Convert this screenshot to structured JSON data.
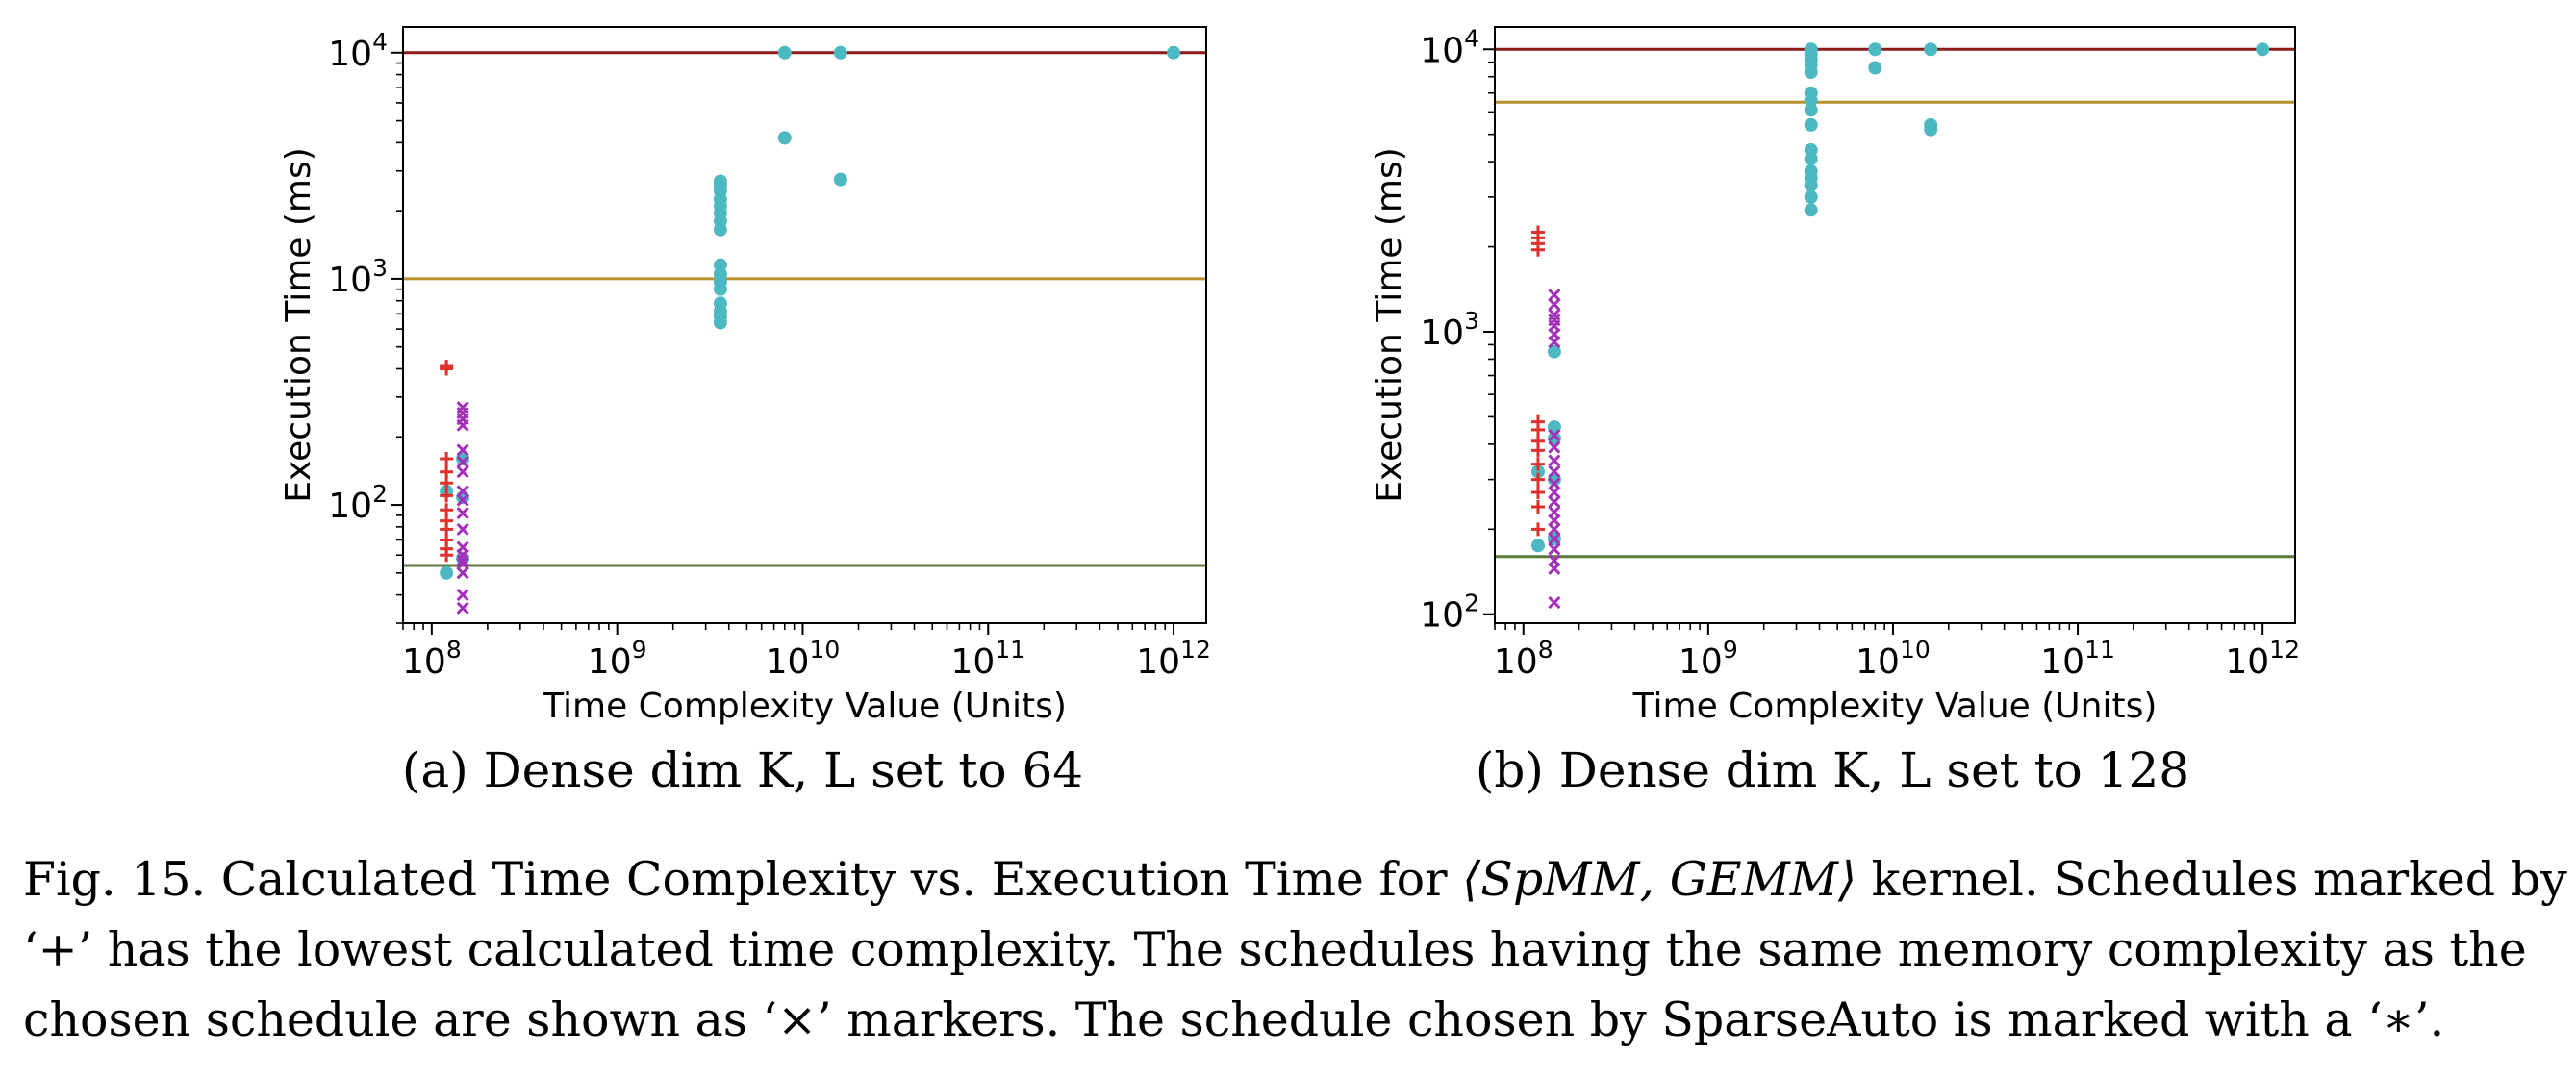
{
  "chart_data": [
    {
      "type": "scatter",
      "subcaption": "(a) Dense dim K, L set to 64",
      "xlabel": "Time Complexity Value (Units)",
      "ylabel": "Execution Time (ms)",
      "xscale": "log",
      "yscale": "log",
      "xlim": [
        70000000,
        1500000000000
      ],
      "ylim": [
        30,
        13000
      ],
      "x_ticks": [
        {
          "value": 100000000,
          "base": "10",
          "exp": "8"
        },
        {
          "value": 1000000000,
          "base": "10",
          "exp": "9"
        },
        {
          "value": 10000000000,
          "base": "10",
          "exp": "10"
        },
        {
          "value": 100000000000,
          "base": "10",
          "exp": "11"
        },
        {
          "value": 1000000000000,
          "base": "10",
          "exp": "12"
        }
      ],
      "y_ticks": [
        {
          "value": 100,
          "base": "10",
          "exp": "2"
        },
        {
          "value": 1000,
          "base": "10",
          "exp": "3"
        },
        {
          "value": 10000,
          "base": "10",
          "exp": "4"
        }
      ],
      "hlines": [
        {
          "y": 10000,
          "color": "#8b1a1a"
        },
        {
          "y": 1000,
          "color": "#b8912c"
        },
        {
          "y": 54,
          "color": "#5a7a3a"
        }
      ],
      "series": [
        {
          "marker": "+",
          "color": "#e0302a",
          "points": [
            {
              "x": 120000000,
              "y": 410
            },
            {
              "x": 120000000,
              "y": 400
            },
            {
              "x": 120000000,
              "y": 160
            },
            {
              "x": 120000000,
              "y": 140
            },
            {
              "x": 120000000,
              "y": 125
            },
            {
              "x": 120000000,
              "y": 110
            },
            {
              "x": 120000000,
              "y": 95
            },
            {
              "x": 120000000,
              "y": 85
            },
            {
              "x": 120000000,
              "y": 78
            },
            {
              "x": 120000000,
              "y": 70
            },
            {
              "x": 120000000,
              "y": 64
            },
            {
              "x": 120000000,
              "y": 60
            }
          ]
        },
        {
          "marker": "x",
          "color": "#a230b8",
          "points": [
            {
              "x": 147000000,
              "y": 270
            },
            {
              "x": 147000000,
              "y": 255
            },
            {
              "x": 147000000,
              "y": 240
            },
            {
              "x": 147000000,
              "y": 225
            },
            {
              "x": 147000000,
              "y": 175
            },
            {
              "x": 147000000,
              "y": 155
            },
            {
              "x": 147000000,
              "y": 140
            },
            {
              "x": 147000000,
              "y": 115
            },
            {
              "x": 147000000,
              "y": 105
            },
            {
              "x": 147000000,
              "y": 92
            },
            {
              "x": 147000000,
              "y": 78
            },
            {
              "x": 147000000,
              "y": 65
            },
            {
              "x": 147000000,
              "y": 60
            },
            {
              "x": 147000000,
              "y": 57
            },
            {
              "x": 147000000,
              "y": 55
            },
            {
              "x": 147000000,
              "y": 50
            },
            {
              "x": 147000000,
              "y": 40
            },
            {
              "x": 147000000,
              "y": 35
            }
          ]
        },
        {
          "marker": "o",
          "color": "#4bb8c2",
          "points": [
            {
              "x": 120000000,
              "y": 115
            },
            {
              "x": 120000000,
              "y": 50
            },
            {
              "x": 147000000,
              "y": 160
            },
            {
              "x": 147000000,
              "y": 108
            },
            {
              "x": 147000000,
              "y": 58
            },
            {
              "x": 3600000000,
              "y": 2700
            },
            {
              "x": 3600000000,
              "y": 2600
            },
            {
              "x": 3600000000,
              "y": 2450
            },
            {
              "x": 3600000000,
              "y": 2250
            },
            {
              "x": 3600000000,
              "y": 2100
            },
            {
              "x": 3600000000,
              "y": 1950
            },
            {
              "x": 3600000000,
              "y": 1800
            },
            {
              "x": 3600000000,
              "y": 1650
            },
            {
              "x": 3600000000,
              "y": 1150
            },
            {
              "x": 3600000000,
              "y": 1050
            },
            {
              "x": 3600000000,
              "y": 970
            },
            {
              "x": 3600000000,
              "y": 900
            },
            {
              "x": 3600000000,
              "y": 780
            },
            {
              "x": 3600000000,
              "y": 720
            },
            {
              "x": 3600000000,
              "y": 680
            },
            {
              "x": 3600000000,
              "y": 640
            },
            {
              "x": 8000000000,
              "y": 10000
            },
            {
              "x": 8000000000,
              "y": 4200
            },
            {
              "x": 16000000000,
              "y": 10000
            },
            {
              "x": 16000000000,
              "y": 2750
            },
            {
              "x": 1000000000000,
              "y": 10000
            }
          ]
        }
      ]
    },
    {
      "type": "scatter",
      "subcaption": "(b) Dense dim K, L set to 128",
      "xlabel": "Time Complexity Value (Units)",
      "ylabel": "Execution Time (ms)",
      "xscale": "log",
      "yscale": "log",
      "xlim": [
        70000000,
        1500000000000
      ],
      "ylim": [
        93,
        12000
      ],
      "x_ticks": [
        {
          "value": 100000000,
          "base": "10",
          "exp": "8"
        },
        {
          "value": 1000000000,
          "base": "10",
          "exp": "9"
        },
        {
          "value": 10000000000,
          "base": "10",
          "exp": "10"
        },
        {
          "value": 100000000000,
          "base": "10",
          "exp": "11"
        },
        {
          "value": 1000000000000,
          "base": "10",
          "exp": "12"
        }
      ],
      "y_ticks": [
        {
          "value": 100,
          "base": "10",
          "exp": "2"
        },
        {
          "value": 1000,
          "base": "10",
          "exp": "3"
        },
        {
          "value": 10000,
          "base": "10",
          "exp": "4"
        }
      ],
      "hlines": [
        {
          "y": 10000,
          "color": "#8b1a1a"
        },
        {
          "y": 6500,
          "color": "#b8912c"
        },
        {
          "y": 160,
          "color": "#5a7a3a"
        }
      ],
      "series": [
        {
          "marker": "+",
          "color": "#e0302a",
          "points": [
            {
              "x": 120000000,
              "y": 2250
            },
            {
              "x": 120000000,
              "y": 2150
            },
            {
              "x": 120000000,
              "y": 2050
            },
            {
              "x": 120000000,
              "y": 1950
            },
            {
              "x": 120000000,
              "y": 480
            },
            {
              "x": 120000000,
              "y": 450
            },
            {
              "x": 120000000,
              "y": 410
            },
            {
              "x": 120000000,
              "y": 380
            },
            {
              "x": 120000000,
              "y": 340
            },
            {
              "x": 120000000,
              "y": 300
            },
            {
              "x": 120000000,
              "y": 270
            },
            {
              "x": 120000000,
              "y": 240
            },
            {
              "x": 120000000,
              "y": 200
            }
          ]
        },
        {
          "marker": "x",
          "color": "#a230b8",
          "points": [
            {
              "x": 147000000,
              "y": 1350
            },
            {
              "x": 147000000,
              "y": 1250
            },
            {
              "x": 147000000,
              "y": 1150
            },
            {
              "x": 147000000,
              "y": 1100
            },
            {
              "x": 147000000,
              "y": 1050
            },
            {
              "x": 147000000,
              "y": 980
            },
            {
              "x": 147000000,
              "y": 920
            },
            {
              "x": 147000000,
              "y": 430
            },
            {
              "x": 147000000,
              "y": 390
            },
            {
              "x": 147000000,
              "y": 350
            },
            {
              "x": 147000000,
              "y": 320
            },
            {
              "x": 147000000,
              "y": 290
            },
            {
              "x": 147000000,
              "y": 270
            },
            {
              "x": 147000000,
              "y": 250
            },
            {
              "x": 147000000,
              "y": 230
            },
            {
              "x": 147000000,
              "y": 215
            },
            {
              "x": 147000000,
              "y": 200
            },
            {
              "x": 147000000,
              "y": 185
            },
            {
              "x": 147000000,
              "y": 170
            },
            {
              "x": 147000000,
              "y": 155
            },
            {
              "x": 147000000,
              "y": 145
            },
            {
              "x": 147000000,
              "y": 110
            }
          ]
        },
        {
          "marker": "o",
          "color": "#4bb8c2",
          "points": [
            {
              "x": 120000000,
              "y": 320
            },
            {
              "x": 120000000,
              "y": 175
            },
            {
              "x": 147000000,
              "y": 850
            },
            {
              "x": 147000000,
              "y": 460
            },
            {
              "x": 147000000,
              "y": 420
            },
            {
              "x": 147000000,
              "y": 300
            },
            {
              "x": 147000000,
              "y": 185
            },
            {
              "x": 3600000000,
              "y": 10000
            },
            {
              "x": 3600000000,
              "y": 9600
            },
            {
              "x": 3600000000,
              "y": 9200
            },
            {
              "x": 3600000000,
              "y": 8800
            },
            {
              "x": 3600000000,
              "y": 8300
            },
            {
              "x": 3600000000,
              "y": 7000
            },
            {
              "x": 3600000000,
              "y": 6600
            },
            {
              "x": 3600000000,
              "y": 6100
            },
            {
              "x": 3600000000,
              "y": 5400
            },
            {
              "x": 3600000000,
              "y": 4400
            },
            {
              "x": 3600000000,
              "y": 4100
            },
            {
              "x": 3600000000,
              "y": 3700
            },
            {
              "x": 3600000000,
              "y": 3500
            },
            {
              "x": 3600000000,
              "y": 3300
            },
            {
              "x": 3600000000,
              "y": 3000
            },
            {
              "x": 3600000000,
              "y": 2700
            },
            {
              "x": 8000000000,
              "y": 10000
            },
            {
              "x": 8000000000,
              "y": 8600
            },
            {
              "x": 16000000000,
              "y": 10000
            },
            {
              "x": 16000000000,
              "y": 5400
            },
            {
              "x": 16000000000,
              "y": 5200
            },
            {
              "x": 1000000000000,
              "y": 10000
            }
          ]
        }
      ]
    }
  ],
  "caption": {
    "line1_a": "Fig. 15.  Calculated Time Complexity vs. Execution Time for ",
    "math": "⟨SpMM, GEMM⟩",
    "line1_b": " kernel. Schedules marked by",
    "line2": "‘+’ has the lowest calculated time complexity. The schedules having the same memory complexity as the",
    "line3": "chosen schedule are shown as ‘×’ markers. The schedule chosen by SparseAuto is marked with a ‘∗’."
  }
}
